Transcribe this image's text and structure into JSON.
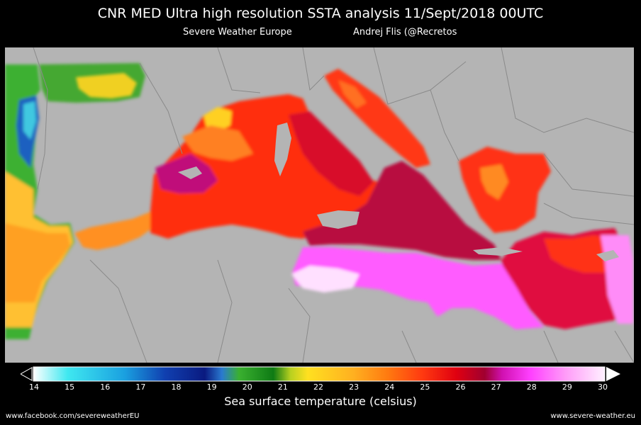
{
  "title": "CNR MED Ultra high resolution SSTA analysis 11/Sept/2018 00UTC",
  "subtitle_left": "Severe Weather Europe",
  "subtitle_right": "Andrej Flis (@Recretos",
  "colorbar": {
    "label": "Sea surface temperature (celsius)",
    "ticks": [
      "14",
      "15",
      "16",
      "17",
      "18",
      "19",
      "20",
      "21",
      "22",
      "23",
      "24",
      "25",
      "26",
      "27",
      "28",
      "29",
      "30"
    ],
    "min": 14,
    "max": 30,
    "colors": [
      "#ffffff",
      "#3fe8f0",
      "#1aa0e0",
      "#1040b0",
      "#0a1a80",
      "#2a7ad0",
      "#3ab030",
      "#0e7a14",
      "#b8d020",
      "#ffe020",
      "#ffb020",
      "#ff7a10",
      "#ff3a10",
      "#e00010",
      "#a00030",
      "#d010b0",
      "#ff40ff",
      "#ff9af8",
      "#fff0ff"
    ]
  },
  "map": {
    "land_color": "#b4b4b4",
    "border_color": "#8a8a8a"
  },
  "footer_left": "www.facebook.com/severeweatherEU",
  "footer_right": "www.severe-weather.eu"
}
